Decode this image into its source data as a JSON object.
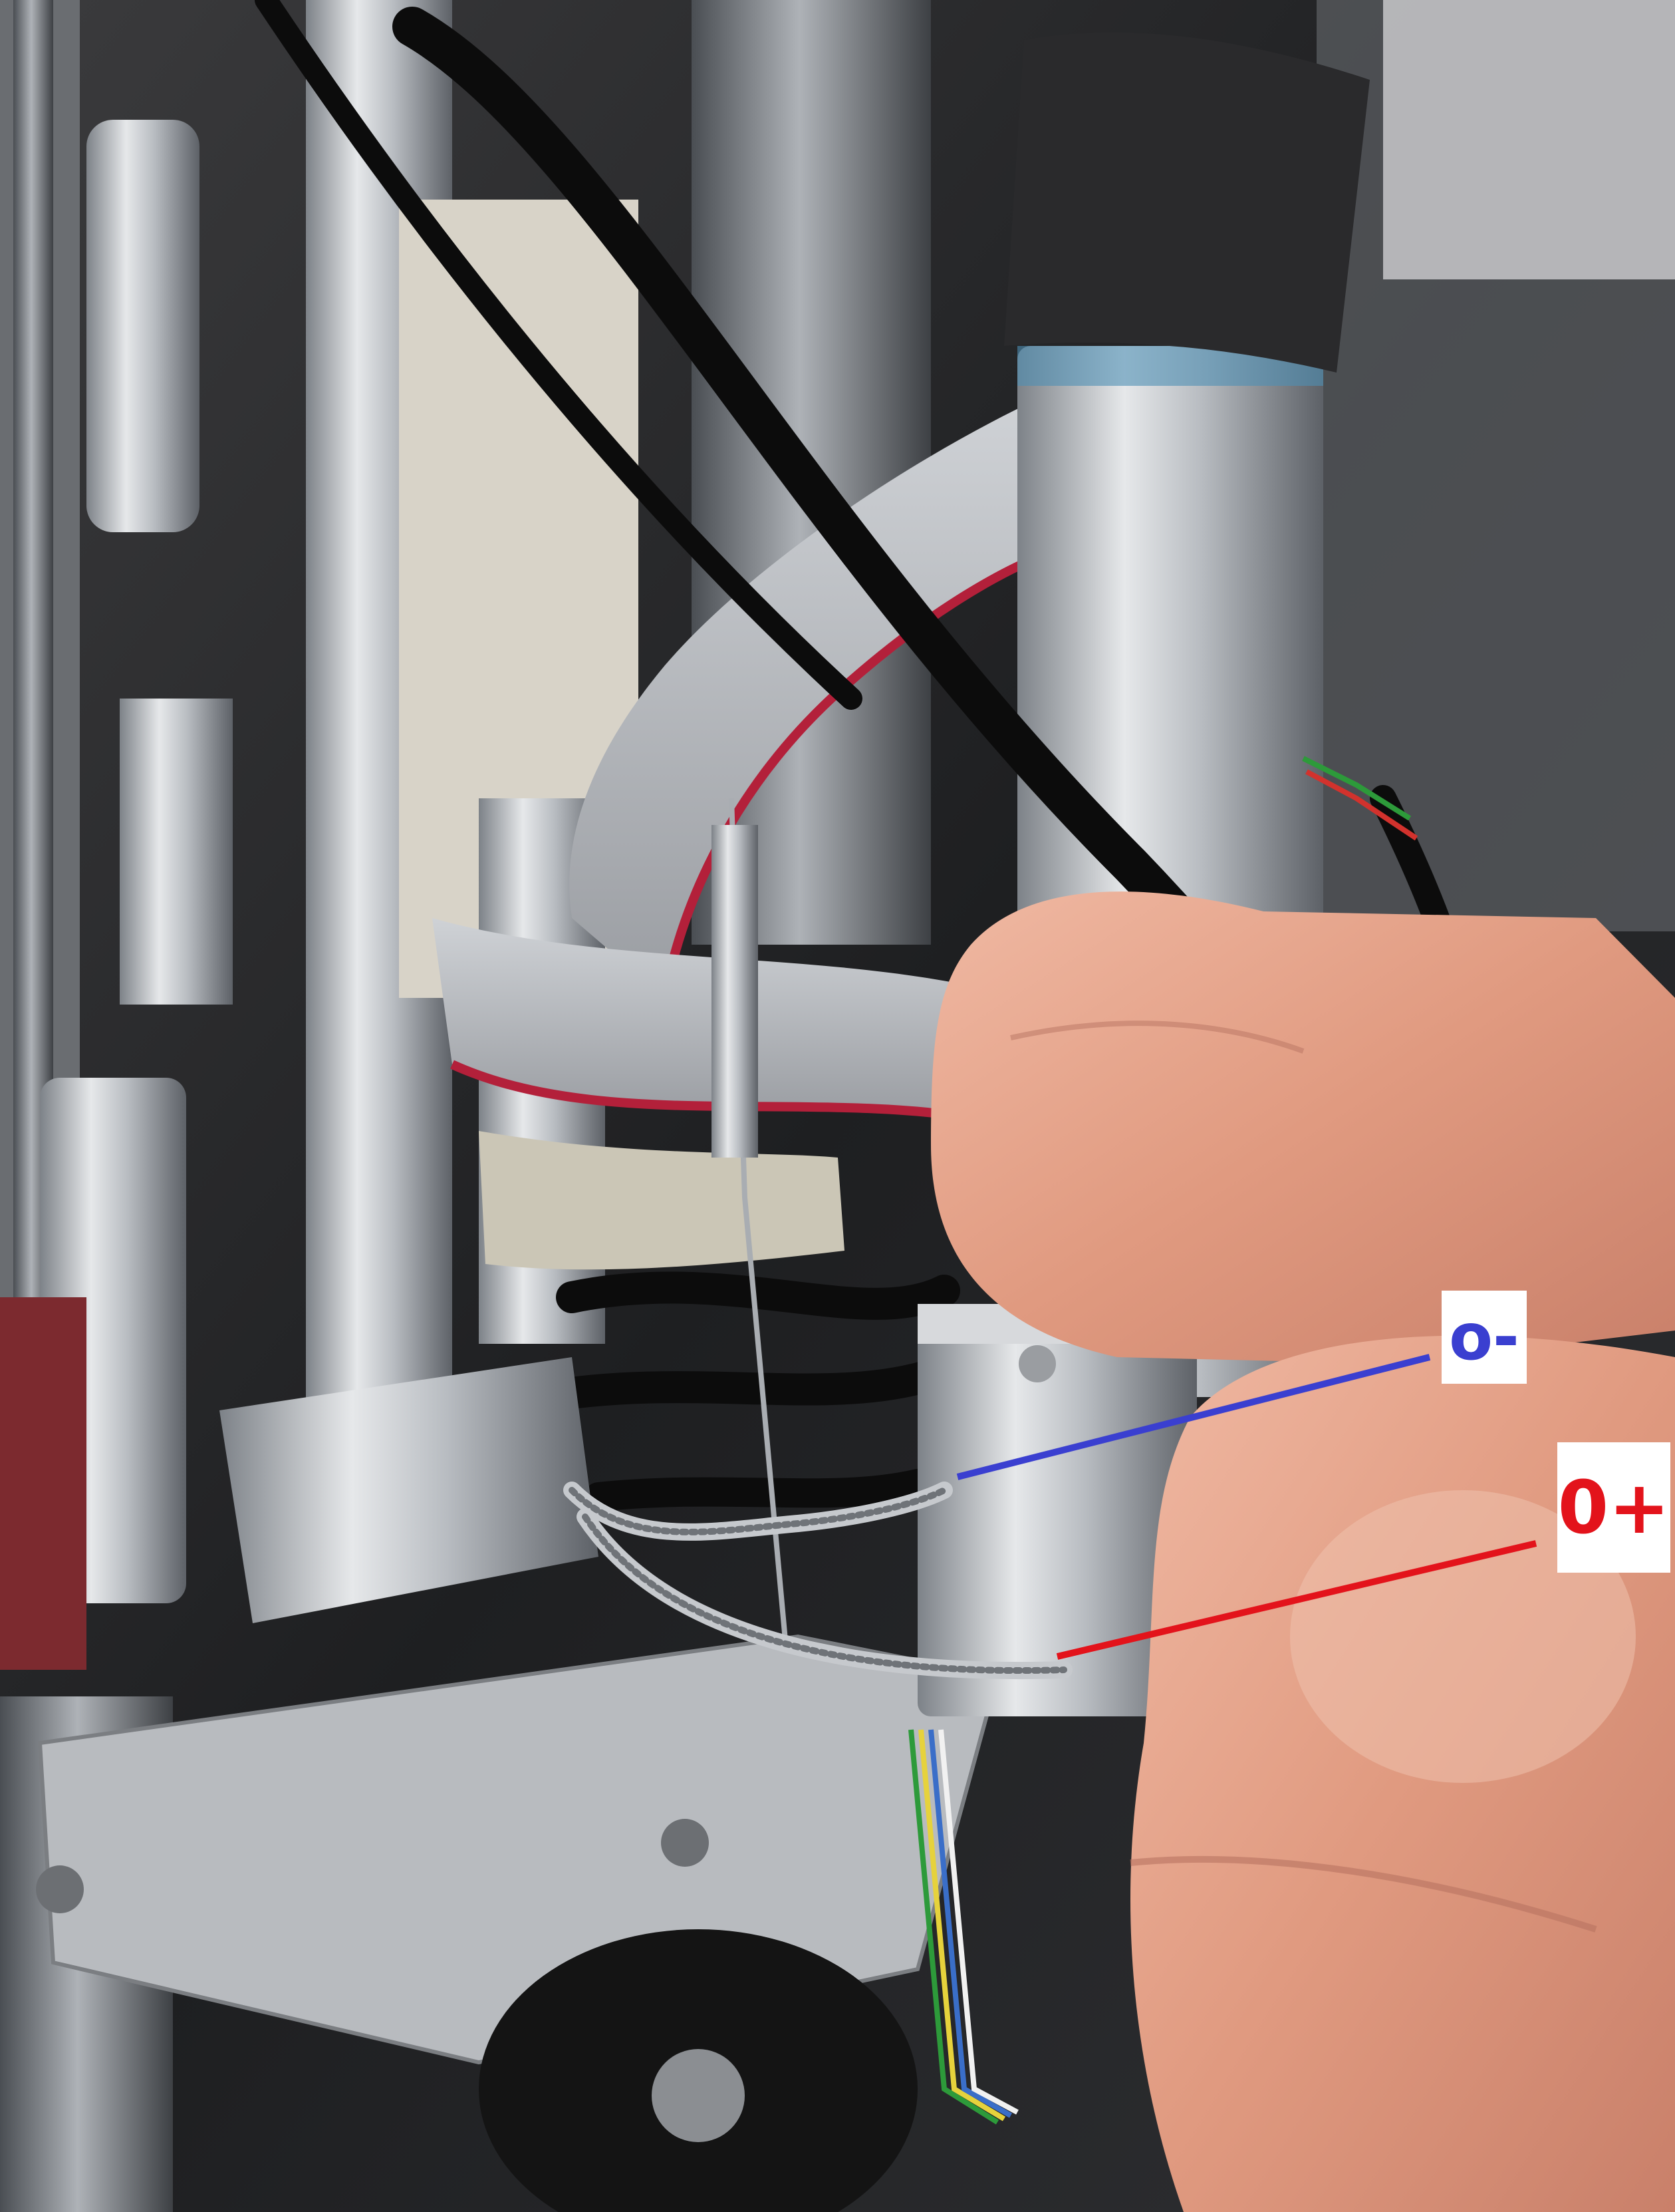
{
  "annotations": {
    "negative": {
      "text": "o-",
      "color": "#3a3fd0"
    },
    "positive": {
      "text": "0+",
      "color": "#e3131b"
    }
  },
  "colors": {
    "ribbon_cable": "#b9bcc0",
    "ribbon_red_stripe": "#b3203a",
    "metal": "#c9ccd0",
    "black_cable": "#0c0c0c",
    "skin": "#e2a48d"
  }
}
